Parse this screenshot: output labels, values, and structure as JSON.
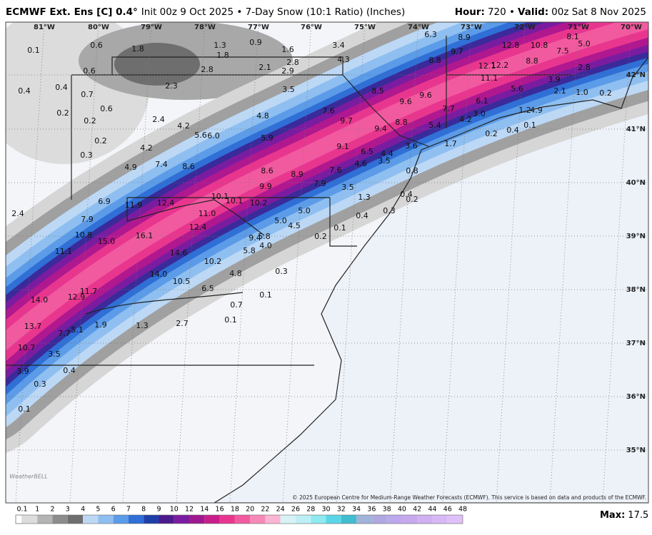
{
  "header": {
    "title_bold": "ECMWF Ext. Ens [C] 0.4°",
    "title_rest": "Init 00z 9 Oct 2025 • 7-Day Snow (10:1 Ratio) (Inches)",
    "hour_label": "Hour:",
    "hour": "720 •",
    "valid_label": "Valid:",
    "valid": "00z Sat 8 Nov 2025"
  },
  "map": {
    "longitudes": [
      "81°W",
      "80°W",
      "79°W",
      "78°W",
      "77°W",
      "76°W",
      "75°W",
      "74°W",
      "73°W",
      "72°W",
      "71°W",
      "70°W"
    ],
    "latitudes": [
      "42°N",
      "41°N",
      "40°N",
      "39°N",
      "38°N",
      "37°N",
      "36°N",
      "35°N"
    ],
    "snow_values": [
      "0.1",
      "0.6",
      "1.8",
      "1.3",
      "1.8",
      "0.9",
      "1.6",
      "0.6",
      "0.4",
      "0.4",
      "0.7",
      "0.6",
      "0.2",
      "0.2",
      "0.2",
      "0.3",
      "2.3",
      "2.8",
      "2.1",
      "2.8",
      "2.9",
      "3.4",
      "4.3",
      "6.3",
      "8.9",
      "9.7",
      "12.8",
      "10.8",
      "8.1",
      "5.0",
      "7.5",
      "8.8",
      "12.1",
      "12.2",
      "11.1",
      "8.8",
      "2.8",
      "3.9",
      "5.6",
      "2.1",
      "1.0",
      "0.2",
      "3.5",
      "8.5",
      "9.6",
      "9.6",
      "7.7",
      "6.1",
      "3.0",
      "4.2",
      "4.9",
      "1.2",
      "7.6",
      "4.8",
      "9.7",
      "8.8",
      "9.4",
      "5.4",
      "0.2",
      "0.4",
      "0.1",
      "4.2",
      "2.4",
      "5.6",
      "6.0",
      "5.9",
      "9.1",
      "6.5",
      "4.4",
      "3.6",
      "1.7",
      "4.2",
      "4.9",
      "7.4",
      "8.6",
      "8.6",
      "8.9",
      "7.6",
      "4.6",
      "3.5",
      "0.8",
      "7.9",
      "9.9",
      "10.1",
      "10.1",
      "10.2",
      "3.5",
      "1.3",
      "0.4",
      "0.2",
      "6.9",
      "11.9",
      "12.4",
      "11.0",
      "5.0",
      "0.3",
      "0.4",
      "5.0",
      "4.5",
      "0.1",
      "7.9",
      "2.4",
      "12.4",
      "16.1",
      "10.8",
      "15.0",
      "9.4",
      "5.8",
      "4.0",
      "0.2",
      "5.8",
      "11.1",
      "14.6",
      "10.2",
      "0.3",
      "4.8",
      "14.0",
      "10.5",
      "6.5",
      "11.7",
      "12.9",
      "14.0",
      "0.1",
      "0.7",
      "1.9",
      "1.3",
      "2.7",
      "0.1",
      "13.7",
      "7.7",
      "5.1",
      "10.7",
      "3.5",
      "3.9",
      "0.4",
      "0.3",
      "0.1"
    ],
    "copyright": "© 2025 European Centre for Medium-Range Weather Forecasts (ECMWF). This service is based on data and products of the ECMWF."
  },
  "legend": {
    "levels": [
      0.1,
      1,
      2,
      3,
      4,
      5,
      6,
      7,
      8,
      9,
      10,
      12,
      14,
      16,
      18,
      20,
      22,
      24,
      26,
      28,
      30,
      32,
      34,
      36,
      38,
      40,
      42,
      44,
      46,
      48
    ],
    "max_label": "Max:",
    "max": 17.5
  }
}
